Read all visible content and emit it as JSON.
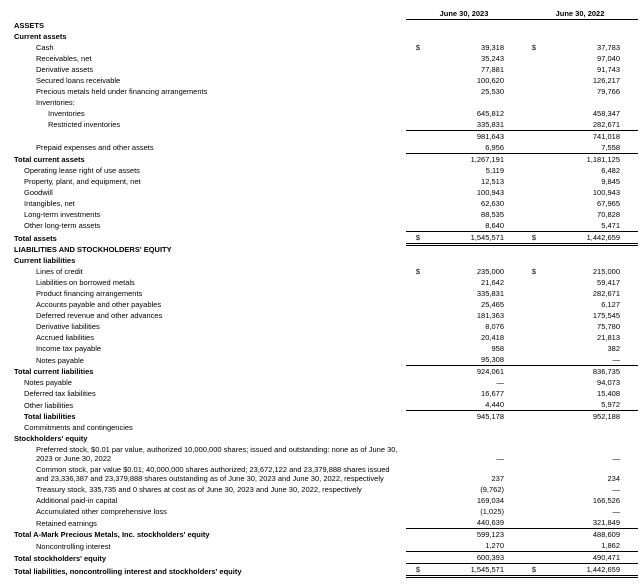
{
  "headers": {
    "col1": "June 30, 2023",
    "col2": "June 30, 2022"
  },
  "sym": "$",
  "rows": [
    {
      "label": "ASSETS",
      "class": "bold"
    },
    {
      "label": "Current assets",
      "class": "bold"
    },
    {
      "label": "Cash",
      "indent": 2,
      "sym": true,
      "v1": "39,318",
      "v2": "37,783"
    },
    {
      "label": "Receivables, net",
      "indent": 2,
      "v1": "35,243",
      "v2": "97,040"
    },
    {
      "label": "Derivative assets",
      "indent": 2,
      "v1": "77,881",
      "v2": "91,743"
    },
    {
      "label": "Secured loans receivable",
      "indent": 2,
      "v1": "100,620",
      "v2": "126,217"
    },
    {
      "label": "Precious metals held under financing arrangements",
      "indent": 2,
      "v1": "25,530",
      "v2": "79,766"
    },
    {
      "label": "Inventories:",
      "indent": 2
    },
    {
      "label": "Inventories",
      "indent": 3,
      "v1": "645,812",
      "v2": "458,347"
    },
    {
      "label": "Restricted inventories",
      "indent": 3,
      "v1": "335,831",
      "v2": "282,671"
    },
    {
      "label": "",
      "indent": 3,
      "v1": "981,643",
      "v2": "741,018",
      "topline": true
    },
    {
      "label": "Prepaid expenses and other assets",
      "indent": 2,
      "v1": "6,956",
      "v2": "7,558"
    },
    {
      "label": "Total current assets",
      "class": "bold",
      "v1": "1,267,191",
      "v2": "1,181,125",
      "topline": true
    },
    {
      "label": "Operating lease right of use assets",
      "indent": 1,
      "v1": "5,119",
      "v2": "6,482"
    },
    {
      "label": "Property, plant, and equipment, net",
      "indent": 1,
      "v1": "12,513",
      "v2": "9,845"
    },
    {
      "label": "Goodwill",
      "indent": 1,
      "v1": "100,943",
      "v2": "100,943"
    },
    {
      "label": "Intangibles, net",
      "indent": 1,
      "v1": "62,630",
      "v2": "67,965"
    },
    {
      "label": "Long-term investments",
      "indent": 1,
      "v1": "88,535",
      "v2": "70,828"
    },
    {
      "label": "Other long-term assets",
      "indent": 1,
      "v1": "8,640",
      "v2": "5,471"
    },
    {
      "label": "Total assets",
      "class": "bold",
      "sym": true,
      "v1": "1,545,571",
      "v2": "1,442,659",
      "grand": true
    },
    {
      "label": "LIABILITIES AND STOCKHOLDERS' EQUITY",
      "class": "bold"
    },
    {
      "label": "Current liabilities",
      "class": "bold"
    },
    {
      "label": "Lines of credit",
      "indent": 2,
      "sym": true,
      "v1": "235,000",
      "v2": "215,000"
    },
    {
      "label": "Liabilities on borrowed metals",
      "indent": 2,
      "v1": "21,642",
      "v2": "59,417"
    },
    {
      "label": "Product financing arrangements",
      "indent": 2,
      "v1": "335,831",
      "v2": "282,671"
    },
    {
      "label": "Accounts payable and other payables",
      "indent": 2,
      "v1": "25,465",
      "v2": "6,127"
    },
    {
      "label": "Deferred revenue and other advances",
      "indent": 2,
      "v1": "181,363",
      "v2": "175,545"
    },
    {
      "label": "Derivative liabilities",
      "indent": 2,
      "v1": "8,076",
      "v2": "75,780"
    },
    {
      "label": "Accrued liabilities",
      "indent": 2,
      "v1": "20,418",
      "v2": "21,813"
    },
    {
      "label": "Income tax payable",
      "indent": 2,
      "v1": "958",
      "v2": "382"
    },
    {
      "label": "Notes payable",
      "indent": 2,
      "v1": "95,308",
      "v2": "—"
    },
    {
      "label": "Total current liabilities",
      "class": "bold",
      "v1": "924,061",
      "v2": "836,735",
      "topline": true
    },
    {
      "label": "Notes payable",
      "indent": 1,
      "v1": "—",
      "v2": "94,073"
    },
    {
      "label": "Deferred tax liabilities",
      "indent": 1,
      "v1": "16,677",
      "v2": "15,408"
    },
    {
      "label": "Other liabilities",
      "indent": 1,
      "v1": "4,440",
      "v2": "5,972"
    },
    {
      "label": "Total liabilities",
      "indent": 1,
      "class": "bold",
      "v1": "945,178",
      "v2": "952,188",
      "topline": true
    },
    {
      "label": "Commitments and contingencies",
      "indent": 1
    },
    {
      "label": "Stockholders' equity",
      "class": "bold"
    },
    {
      "label": "Preferred stock, $0.01 par value, authorized 10,000,000 shares; issued and outstanding: none as of June 30, 2023 or June 30, 2022",
      "indent": 2,
      "v1": "—",
      "v2": "—"
    },
    {
      "label": "Common stock, par value $0.01; 40,000,000 shares authorized; 23,672,122 and 23,379,888 shares issued and 23,336,387 and 23,379,888 shares outstanding as of June 30, 2023 and June 30, 2022, respectively",
      "indent": 2,
      "v1": "237",
      "v2": "234"
    },
    {
      "label": "Treasury stock, 335,735 and 0 shares at cost as of June 30, 2023 and June 30, 2022, respectively",
      "indent": 2,
      "v1": "(9,762)",
      "v2": "—"
    },
    {
      "label": "Additional paid-in capital",
      "indent": 2,
      "v1": "169,034",
      "v2": "166,526"
    },
    {
      "label": "Accumulated other comprehensive loss",
      "indent": 2,
      "v1": "(1,025)",
      "v2": "—"
    },
    {
      "label": "Retained earnings",
      "indent": 2,
      "v1": "440,639",
      "v2": "321,849"
    },
    {
      "label": "Total A-Mark Precious Metals, Inc. stockholders' equity",
      "class": "bold",
      "v1": "599,123",
      "v2": "488,609",
      "topline": true
    },
    {
      "label": "Noncontrolling interest",
      "indent": 2,
      "v1": "1,270",
      "v2": "1,862"
    },
    {
      "label": "Total stockholders' equity",
      "class": "bold",
      "v1": "600,393",
      "v2": "490,471",
      "topline": true
    },
    {
      "label": "Total liabilities, noncontrolling interest and stockholders' equity",
      "class": "bold",
      "sym": true,
      "v1": "1,545,571",
      "v2": "1,442,659",
      "grand": true
    }
  ]
}
